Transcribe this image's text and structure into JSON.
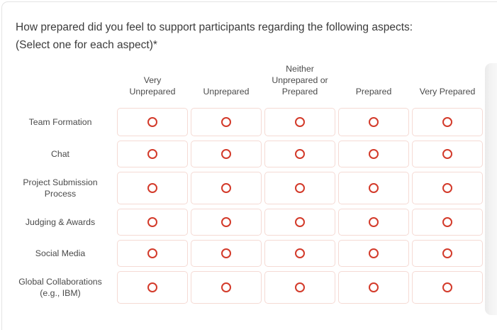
{
  "question": {
    "title": "How prepared did you feel to support participants regarding the following aspects:\n(Select one for each aspect)*"
  },
  "matrix": {
    "columns": [
      "Very\nUnprepared",
      "Unprepared",
      "Neither\nUnprepared or\nPrepared",
      "Prepared",
      "Very Prepared"
    ],
    "rows": [
      "Team Formation",
      "Chat",
      "Project Submission\nProcess",
      "Judging & Awards",
      "Social Media",
      "Global Collaborations\n(e.g., IBM)"
    ],
    "radio_state": "unselected"
  },
  "colors": {
    "radio_red": "#d33a2a",
    "cell_border": "#f5dad4"
  }
}
